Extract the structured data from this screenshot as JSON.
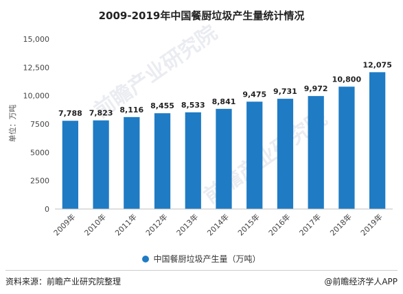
{
  "chart_data": {
    "type": "bar",
    "title": "2009-2019年中国餐厨垃圾产生量统计情况",
    "ylabel": "单位：万吨",
    "xlabel": "",
    "categories": [
      "2009年",
      "2010年",
      "2011年",
      "2012年",
      "2013年",
      "2014年",
      "2015年",
      "2016年",
      "2017年",
      "2018年",
      "2019年"
    ],
    "series": [
      {
        "name": "中国餐厨垃圾产生量（万吨）",
        "values": [
          7788,
          7823,
          8116,
          8455,
          8533,
          8841,
          9475,
          9731,
          9972,
          10800,
          12075
        ],
        "labels": [
          "7,788",
          "7,823",
          "8,116",
          "8,455",
          "8,533",
          "8,841",
          "9,475",
          "9,731",
          "9,972",
          "10,800",
          "12,075"
        ]
      }
    ],
    "ylim": [
      0,
      15000
    ],
    "yticks": [
      0,
      2500,
      5000,
      7500,
      10000,
      12500,
      15000
    ],
    "ytick_labels": [
      "0",
      "2500",
      "5000",
      "7500",
      "10,000",
      "12,500",
      "15,000"
    ],
    "grid": false,
    "legend_position": "bottom",
    "bar_color": "#1f7bc4"
  },
  "footer": {
    "source": "资料来源：前瞻产业研究院整理",
    "credit": "@前瞻经济学人APP"
  },
  "watermark": "前瞻产业研究院"
}
